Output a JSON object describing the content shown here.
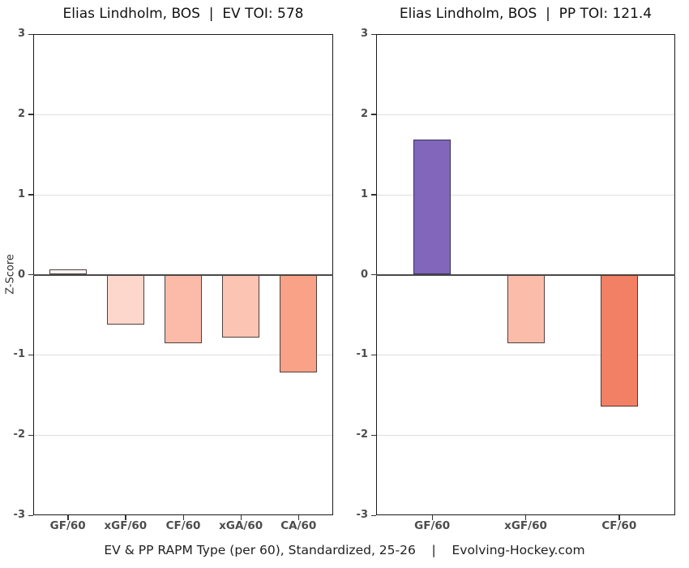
{
  "footer": "EV & PP RAPM Type (per 60), Standardized, 25-26    |    Evolving-Hockey.com",
  "colors": {
    "background": "#ffffff",
    "plot_border": "#1a1a1a",
    "zero_line": "#4a4a4a",
    "gridline": "#dedede",
    "axis_text": "#4d4d4d",
    "title_text": "#111111",
    "bar_border": "#4e4240",
    "positive_strong": "#8166bb",
    "negative_strong": "#f28064"
  },
  "chart_data": [
    {
      "type": "bar",
      "title": "Elias Lindholm, BOS  |  EV TOI: 578",
      "categories": [
        "GF/60",
        "xGF/60",
        "CF/60",
        "xGA/60",
        "CA/60"
      ],
      "values": [
        0.07,
        -0.62,
        -0.86,
        -0.78,
        -1.22
      ],
      "bar_colors": [
        "#f7f3f4",
        "#fdd6cc",
        "#fcbaa8",
        "#fcc4b3",
        "#f9a287"
      ],
      "bar_border_colors": [
        "#4e4240",
        "#4e4240",
        "#4e4240",
        "#4e4240",
        "#4e4240"
      ],
      "xlabel": "",
      "ylabel": "Z-Score",
      "ylim": [
        -3,
        3
      ],
      "yticks": [
        3,
        2,
        1,
        0,
        -1,
        -2,
        -3
      ],
      "grid": "major-horizontal",
      "legend": "none"
    },
    {
      "type": "bar",
      "title": "Elias Lindholm, BOS  |  PP TOI: 121.4",
      "categories": [
        "GF/60",
        "xGF/60",
        "CF/60"
      ],
      "values": [
        1.68,
        -0.86,
        -1.64
      ],
      "bar_colors": [
        "#8166bb",
        "#fbbcaa",
        "#f28064"
      ],
      "bar_border_colors": [
        "#39325a",
        "#4e4240",
        "#57372f"
      ],
      "xlabel": "",
      "ylabel": "",
      "ylim": [
        -3,
        3
      ],
      "yticks": [
        3,
        2,
        1,
        0,
        -1,
        -2,
        -3
      ],
      "grid": "major-horizontal",
      "legend": "none"
    }
  ]
}
